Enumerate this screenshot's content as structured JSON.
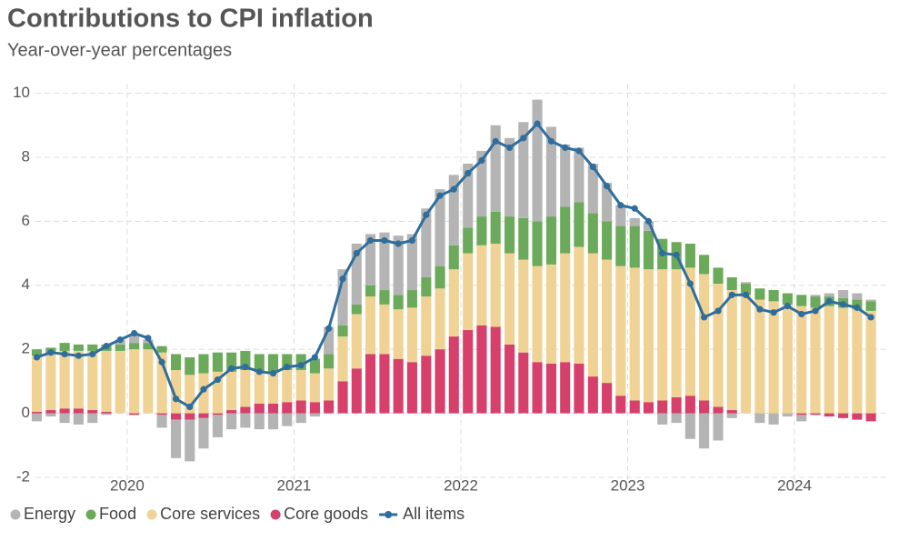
{
  "chart_data": {
    "type": "bar",
    "title": "Contributions to CPI inflation",
    "subtitle": "Year-over-year percentages",
    "x": [
      2019.458,
      2019.542,
      2019.625,
      2019.708,
      2019.792,
      2019.875,
      2019.958,
      2020.042,
      2020.125,
      2020.208,
      2020.292,
      2020.375,
      2020.458,
      2020.542,
      2020.625,
      2020.708,
      2020.792,
      2020.875,
      2020.958,
      2021.042,
      2021.125,
      2021.208,
      2021.292,
      2021.375,
      2021.458,
      2021.542,
      2021.625,
      2021.708,
      2021.792,
      2021.875,
      2021.958,
      2022.042,
      2022.125,
      2022.208,
      2022.292,
      2022.375,
      2022.458,
      2022.542,
      2022.625,
      2022.708,
      2022.792,
      2022.875,
      2022.958,
      2023.042,
      2023.125,
      2023.208,
      2023.292,
      2023.375,
      2023.458,
      2023.542,
      2023.625,
      2023.708,
      2023.792,
      2023.875,
      2023.958,
      2024.042,
      2024.125,
      2024.208,
      2024.292,
      2024.375,
      2024.458
    ],
    "xlim": [
      2019.45,
      2024.55
    ],
    "xticks": [
      2020,
      2021,
      2022,
      2023,
      2024
    ],
    "ylim": [
      -2.2,
      10.3
    ],
    "yticks": [
      -2,
      0,
      2,
      4,
      6,
      8,
      10
    ],
    "grid": true,
    "stacked": true,
    "series": [
      {
        "name": "Energy",
        "color": "#b4b4b4",
        "type": "bar",
        "values": [
          -0.25,
          -0.1,
          -0.3,
          -0.35,
          -0.3,
          -0.05,
          0.15,
          0.25,
          0.1,
          -0.4,
          -1.2,
          -1.3,
          -0.95,
          -0.7,
          -0.5,
          -0.45,
          -0.5,
          -0.5,
          -0.4,
          -0.3,
          -0.1,
          0.85,
          1.75,
          1.9,
          1.6,
          1.8,
          1.85,
          1.75,
          2.15,
          2.4,
          2.2,
          2.0,
          2.05,
          2.7,
          2.45,
          3.0,
          3.8,
          2.8,
          1.95,
          1.7,
          1.55,
          1.2,
          0.65,
          0.25,
          0.3,
          -0.35,
          -0.3,
          -0.8,
          -1.1,
          -0.85,
          -0.15,
          0.05,
          -0.3,
          -0.35,
          -0.1,
          -0.2,
          0.05,
          0.1,
          0.25,
          0.2,
          0.05
        ]
      },
      {
        "name": "Food",
        "color": "#6aaa5a",
        "type": "bar",
        "values": [
          0.2,
          0.2,
          0.25,
          0.2,
          0.2,
          0.2,
          0.2,
          0.2,
          0.2,
          0.2,
          0.5,
          0.55,
          0.6,
          0.6,
          0.6,
          0.6,
          0.55,
          0.55,
          0.5,
          0.5,
          0.45,
          0.45,
          0.35,
          0.3,
          0.35,
          0.45,
          0.45,
          0.55,
          0.6,
          0.7,
          0.75,
          0.8,
          0.9,
          1.0,
          1.15,
          1.3,
          1.4,
          1.5,
          1.45,
          1.4,
          1.25,
          1.2,
          1.25,
          1.3,
          1.2,
          0.95,
          0.85,
          0.75,
          0.6,
          0.5,
          0.4,
          0.35,
          0.35,
          0.35,
          0.35,
          0.35,
          0.35,
          0.3,
          0.3,
          0.3,
          0.3
        ]
      },
      {
        "name": "Core services",
        "color": "#f0d294",
        "type": "bar",
        "values": [
          1.75,
          1.75,
          1.8,
          1.8,
          1.85,
          1.9,
          1.95,
          2.0,
          2.0,
          1.9,
          1.35,
          1.2,
          1.25,
          1.3,
          1.2,
          1.15,
          1.0,
          1.0,
          1.0,
          0.95,
          0.9,
          1.0,
          1.4,
          1.7,
          1.8,
          1.55,
          1.55,
          1.7,
          1.85,
          1.9,
          2.1,
          2.4,
          2.5,
          2.6,
          2.85,
          2.9,
          3.0,
          3.1,
          3.4,
          3.65,
          3.85,
          3.85,
          4.05,
          4.15,
          4.15,
          4.1,
          4.0,
          4.0,
          3.95,
          3.85,
          3.75,
          3.7,
          3.55,
          3.5,
          3.4,
          3.35,
          3.3,
          3.35,
          3.3,
          3.25,
          3.2
        ]
      },
      {
        "name": "Core goods",
        "color": "#d6406b",
        "type": "bar",
        "values": [
          0.05,
          0.1,
          0.15,
          0.15,
          0.1,
          0.05,
          0.0,
          -0.05,
          0.0,
          -0.05,
          -0.2,
          -0.2,
          -0.15,
          -0.05,
          0.1,
          0.2,
          0.3,
          0.3,
          0.35,
          0.4,
          0.35,
          0.4,
          1.0,
          1.4,
          1.85,
          1.85,
          1.7,
          1.6,
          1.8,
          2.0,
          2.4,
          2.6,
          2.75,
          2.7,
          2.15,
          1.9,
          1.6,
          1.55,
          1.6,
          1.55,
          1.15,
          0.95,
          0.55,
          0.4,
          0.35,
          0.4,
          0.5,
          0.55,
          0.4,
          0.2,
          0.1,
          0.0,
          0.0,
          0.0,
          0.0,
          -0.05,
          -0.05,
          -0.1,
          -0.15,
          -0.2,
          -0.25
        ]
      },
      {
        "name": "All items",
        "color": "#2f6e9c",
        "type": "line",
        "values": [
          1.75,
          1.9,
          1.85,
          1.8,
          1.85,
          2.1,
          2.3,
          2.5,
          2.35,
          1.6,
          0.45,
          0.2,
          0.75,
          1.05,
          1.4,
          1.45,
          1.3,
          1.25,
          1.45,
          1.5,
          1.75,
          2.65,
          4.2,
          5.0,
          5.4,
          5.4,
          5.3,
          5.4,
          6.2,
          6.8,
          7.0,
          7.5,
          7.9,
          8.5,
          8.3,
          8.6,
          9.05,
          8.5,
          8.3,
          8.2,
          7.7,
          7.1,
          6.5,
          6.4,
          6.0,
          5.0,
          4.95,
          4.05,
          3.0,
          3.2,
          3.7,
          3.7,
          3.25,
          3.15,
          3.35,
          3.1,
          3.2,
          3.5,
          3.4,
          3.3,
          3.0
        ]
      }
    ]
  }
}
